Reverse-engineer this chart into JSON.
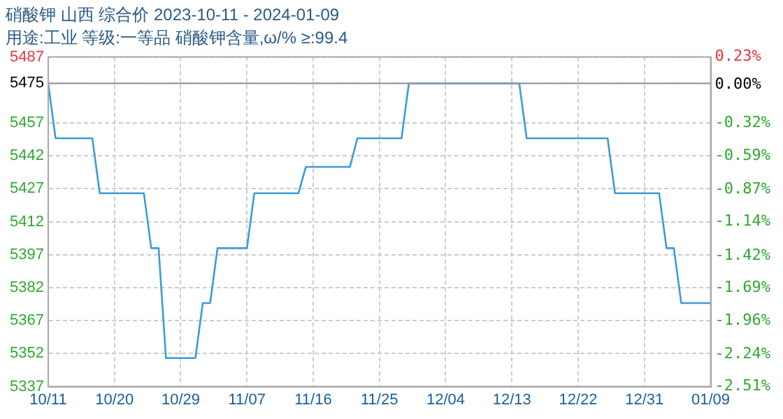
{
  "chart_data": {
    "type": "line",
    "title": "硝酸钾 山西 综合价 2023-10-11 - 2024-01-09",
    "subtitle": "用途:工业 等级:一等品 硝酸钾含量,ω/% ≥:99.4",
    "x": [
      "2023-10-11",
      "2023-10-12",
      "2023-10-17",
      "2023-10-18",
      "2023-10-24",
      "2023-10-25",
      "2023-10-26",
      "2023-10-27",
      "2023-10-31",
      "2023-11-01",
      "2023-11-02",
      "2023-11-03",
      "2023-11-07",
      "2023-11-08",
      "2023-11-14",
      "2023-11-15",
      "2023-11-21",
      "2023-11-22",
      "2023-11-28",
      "2023-11-29",
      "2023-12-14",
      "2023-12-15",
      "2023-12-26",
      "2023-12-27",
      "2024-01-02",
      "2024-01-03",
      "2024-01-04",
      "2024-01-05",
      "2024-01-09"
    ],
    "series": [
      {
        "color": "#3d9ad8",
        "values": [
          5475,
          5450,
          5450,
          5425,
          5425,
          5400,
          5400,
          5350,
          5350,
          5375,
          5375,
          5400,
          5400,
          5425,
          5425,
          5437,
          5437,
          5450,
          5450,
          5475,
          5475,
          5450,
          5450,
          5425,
          5425,
          5400,
          5400,
          5375,
          5375
        ]
      }
    ],
    "xlim": [
      "2023-10-11",
      "2024-01-09"
    ],
    "xticks": [
      {
        "value": "2023-10-11",
        "label": "10/11"
      },
      {
        "value": "2023-10-20",
        "label": "10/20"
      },
      {
        "value": "2023-10-29",
        "label": "10/29"
      },
      {
        "value": "2023-11-07",
        "label": "11/07"
      },
      {
        "value": "2023-11-16",
        "label": "11/16"
      },
      {
        "value": "2023-11-25",
        "label": "11/25"
      },
      {
        "value": "2023-12-04",
        "label": "12/04"
      },
      {
        "value": "2023-12-13",
        "label": "12/13"
      },
      {
        "value": "2023-12-22",
        "label": "12/22"
      },
      {
        "value": "2023-12-31",
        "label": "12/31"
      },
      {
        "value": "2024-01-09",
        "label": "01/09"
      }
    ],
    "ylim": [
      5337,
      5487
    ],
    "yticks": [
      5337,
      5352,
      5367,
      5382,
      5397,
      5412,
      5427,
      5442,
      5457,
      5475,
      5487
    ],
    "y2lim": [
      -2.51,
      0.23
    ],
    "y2ticks": [
      {
        "value": -2.51,
        "label": "-2.51%"
      },
      {
        "value": -2.24,
        "label": "-2.24%"
      },
      {
        "value": -1.96,
        "label": "-1.96%"
      },
      {
        "value": -1.69,
        "label": "-1.69%"
      },
      {
        "value": -1.42,
        "label": "-1.42%"
      },
      {
        "value": -1.14,
        "label": "-1.14%"
      },
      {
        "value": -0.87,
        "label": "-0.87%"
      },
      {
        "value": -0.59,
        "label": "-0.59%"
      },
      {
        "value": -0.32,
        "label": "-0.32%"
      },
      {
        "value": 0,
        "label": "0.00%"
      },
      {
        "value": 0.23,
        "label": "0.23%"
      }
    ],
    "ref_lines": [
      {
        "axis": "y",
        "value": 5475,
        "color": "#999999"
      }
    ],
    "grid": true,
    "legend": false,
    "marker": "none",
    "line_style": "solid"
  }
}
